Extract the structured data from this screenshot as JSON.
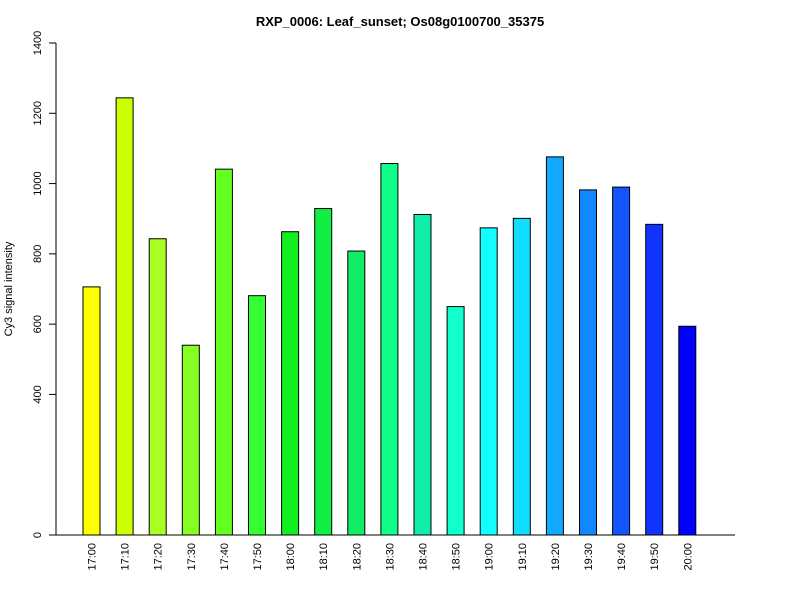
{
  "chart_data": {
    "type": "bar",
    "title": "RXP_0006: Leaf_sunset; Os08g0100700_35375",
    "xlabel": "",
    "ylabel": "Cy3 signal intensity",
    "ylim": [
      0,
      1400
    ],
    "yticks": [
      "0",
      "400",
      "600",
      "800",
      "1000",
      "1200",
      "1400"
    ],
    "grid": false,
    "categories": [
      "17:00",
      "17:10",
      "17:20",
      "17:30",
      "17:40",
      "17:50",
      "18:00",
      "18:10",
      "18:20",
      "18:30",
      "18:40",
      "18:50",
      "19:00",
      "19:10",
      "19:20",
      "19:30",
      "19:40",
      "19:50",
      "20:00"
    ],
    "values": [
      706,
      1244,
      843,
      540,
      1041,
      681,
      863,
      929,
      808,
      1057,
      912,
      650,
      874,
      901,
      1076,
      982,
      990,
      884,
      594
    ],
    "colors": [
      "#ffff00",
      "#ccff00",
      "#aaff22",
      "#88ff22",
      "#66ff22",
      "#33ff33",
      "#11ee22",
      "#11ee44",
      "#11ee66",
      "#11ff88",
      "#11eeaa",
      "#11ffcc",
      "#11ffff",
      "#11ddff",
      "#11aaff",
      "#1188ff",
      "#1155ff",
      "#1133ff",
      "#0000ff"
    ]
  }
}
